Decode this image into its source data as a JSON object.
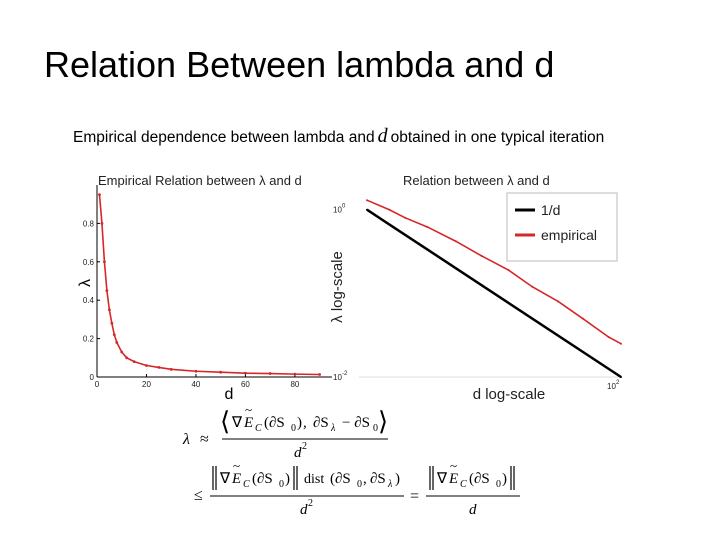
{
  "slide": {
    "title": "Relation Between lambda and d",
    "caption_before": "Empirical dependence between lambda  and",
    "caption_symbol": "d",
    "caption_after": "obtained in one typical iteration"
  },
  "chart_data": [
    {
      "type": "line",
      "title": "Empirical Relation between λ and d",
      "xlabel": "d",
      "ylabel": "λ",
      "xlim": [
        0,
        95
      ],
      "ylim": [
        0,
        1
      ],
      "x_ticks": [
        "0",
        "20",
        "40",
        "60",
        "80"
      ],
      "y_ticks": [
        "0",
        "0.2",
        "0.4",
        "0.6",
        "0.8"
      ],
      "series": [
        {
          "name": "empirical",
          "color": "#d62728",
          "x": [
            1,
            2,
            3,
            4,
            5,
            6,
            7,
            8,
            10,
            12,
            15,
            20,
            25,
            30,
            40,
            50,
            60,
            70,
            80,
            90
          ],
          "y": [
            0.95,
            0.8,
            0.6,
            0.45,
            0.35,
            0.28,
            0.22,
            0.18,
            0.13,
            0.1,
            0.08,
            0.06,
            0.05,
            0.04,
            0.03,
            0.025,
            0.02,
            0.018,
            0.015,
            0.013
          ]
        }
      ]
    },
    {
      "type": "line",
      "title": "Relation between λ and d",
      "xlabel": "d  log-scale",
      "ylabel": "λ  log-scale",
      "xscale": "log",
      "yscale": "log",
      "legend": "top-right",
      "y_ticks": [
        "10",
        "10"
      ],
      "y_tick_exps": [
        "0",
        "-2"
      ],
      "x_ticks": [
        "10"
      ],
      "x_tick_exps": [
        "2"
      ],
      "series": [
        {
          "name": "1/d",
          "color": "#000000",
          "x": [
            1,
            100
          ],
          "y": [
            1,
            0.01
          ]
        },
        {
          "name": "empirical",
          "color": "#d62728",
          "x": [
            1,
            1.5,
            2,
            3,
            5,
            8,
            13,
            20,
            32,
            50,
            80,
            100
          ],
          "y": [
            1.3,
            1.0,
            0.8,
            0.62,
            0.42,
            0.28,
            0.19,
            0.12,
            0.08,
            0.05,
            0.03,
            0.025
          ]
        }
      ]
    }
  ],
  "equations": {
    "approx_rel": "≈",
    "leq_rel": "≤",
    "eq_rel": "=",
    "lambda": "λ",
    "nabla": "∇",
    "E": "E",
    "C": "C",
    "tilde": "~",
    "S0": "(∂S",
    "zero": "0",
    "close_paren": ")",
    "comma": ",",
    "S_lambda": "∂S",
    "minus_S0": "− ∂S",
    "dist": "dist",
    "d": "d",
    "sq": "2",
    "lambda_sub": "λ"
  }
}
